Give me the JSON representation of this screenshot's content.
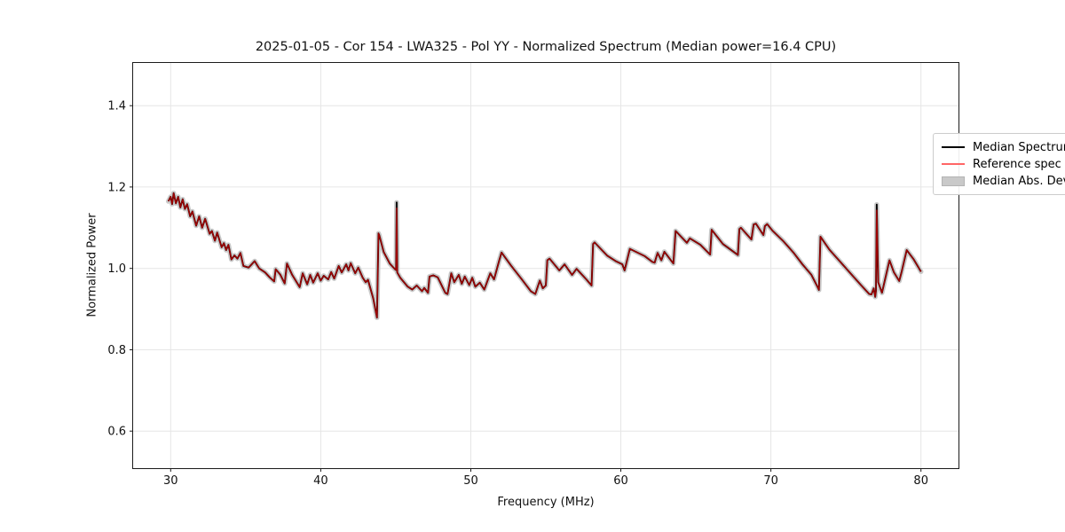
{
  "chart_data": {
    "type": "line",
    "title": "2025-01-05 - Cor 154 - LWA325 - Pol YY - Normalized Spectrum (Median power=16.4 CPU)",
    "xlabel": "Frequency (MHz)",
    "ylabel": "Normalized Power",
    "xlim": [
      27.5,
      82.5
    ],
    "ylim": [
      0.509,
      1.505
    ],
    "xticks": [
      30,
      40,
      50,
      60,
      70,
      80
    ],
    "xtick_labels": [
      "30",
      "40",
      "50",
      "60",
      "70",
      "80"
    ],
    "yticks": [
      0.6,
      0.8,
      1.0,
      1.2,
      1.4
    ],
    "ytick_labels": [
      "0.6",
      "0.8",
      "1.0",
      "1.2",
      "1.4"
    ],
    "grid": true,
    "legend_position": "upper right",
    "x": [
      29.85,
      30.0,
      30.1,
      30.2,
      30.35,
      30.5,
      30.65,
      30.8,
      30.95,
      31.1,
      31.3,
      31.45,
      31.7,
      31.9,
      32.1,
      32.3,
      32.6,
      32.75,
      32.95,
      33.1,
      33.4,
      33.55,
      33.7,
      33.85,
      34.05,
      34.25,
      34.45,
      34.65,
      34.85,
      35.2,
      35.6,
      35.9,
      36.3,
      36.6,
      36.9,
      37.0,
      37.3,
      37.6,
      37.75,
      38.1,
      38.6,
      38.8,
      39.1,
      39.3,
      39.5,
      39.8,
      40.0,
      40.2,
      40.5,
      40.7,
      40.9,
      41.2,
      41.4,
      41.7,
      41.85,
      42.0,
      42.3,
      42.5,
      42.8,
      43.0,
      43.15,
      43.5,
      43.75,
      43.85,
      43.9,
      44.2,
      44.6,
      44.95,
      45.02,
      45.06,
      45.1,
      45.3,
      45.8,
      46.1,
      46.4,
      46.75,
      46.9,
      47.15,
      47.25,
      47.5,
      47.8,
      48.3,
      48.45,
      48.7,
      48.9,
      49.2,
      49.4,
      49.6,
      49.9,
      50.1,
      50.3,
      50.6,
      50.9,
      51.3,
      51.55,
      51.9,
      52.05,
      52.7,
      53.4,
      54.0,
      54.3,
      54.6,
      54.8,
      55.0,
      55.1,
      55.25,
      55.9,
      56.25,
      56.75,
      57.05,
      57.7,
      58.05,
      58.15,
      58.25,
      59.1,
      59.7,
      60.1,
      60.25,
      60.6,
      61.6,
      62.1,
      62.25,
      62.45,
      62.7,
      62.9,
      63.5,
      63.65,
      64.4,
      64.6,
      65.3,
      65.95,
      66.05,
      66.8,
      67.8,
      67.9,
      68.0,
      68.7,
      68.85,
      69.0,
      69.5,
      69.6,
      69.75,
      70.1,
      70.8,
      71.5,
      72.1,
      72.7,
      73.1,
      73.2,
      73.3,
      73.9,
      74.6,
      75.3,
      76.0,
      76.55,
      76.7,
      76.85,
      76.95,
      77.0,
      77.05,
      77.15,
      77.4,
      77.9,
      78.2,
      78.55,
      78.7,
      79.05,
      79.5,
      80.0
    ],
    "series": [
      {
        "name": "Median Spectrum",
        "color": "#000000",
        "style": "solid",
        "values": [
          1.165,
          1.176,
          1.158,
          1.185,
          1.16,
          1.176,
          1.15,
          1.17,
          1.146,
          1.158,
          1.128,
          1.14,
          1.105,
          1.128,
          1.1,
          1.122,
          1.085,
          1.092,
          1.068,
          1.088,
          1.052,
          1.062,
          1.045,
          1.058,
          1.022,
          1.032,
          1.024,
          1.038,
          1.006,
          1.002,
          1.018,
          1.0,
          0.99,
          0.978,
          0.968,
          0.998,
          0.985,
          0.963,
          1.012,
          0.984,
          0.954,
          0.988,
          0.961,
          0.984,
          0.965,
          0.988,
          0.97,
          0.982,
          0.973,
          0.991,
          0.975,
          1.006,
          0.99,
          1.01,
          0.995,
          1.013,
          0.988,
          1.002,
          0.977,
          0.966,
          0.972,
          0.926,
          0.879,
          1.086,
          1.082,
          1.04,
          1.012,
          0.998,
          0.996,
          1.162,
          0.99,
          0.977,
          0.955,
          0.948,
          0.958,
          0.944,
          0.952,
          0.94,
          0.98,
          0.983,
          0.978,
          0.94,
          0.937,
          0.988,
          0.966,
          0.984,
          0.962,
          0.98,
          0.959,
          0.977,
          0.955,
          0.965,
          0.948,
          0.988,
          0.973,
          1.02,
          1.039,
          1.006,
          0.973,
          0.944,
          0.937,
          0.97,
          0.951,
          0.958,
          1.02,
          1.024,
          0.995,
          1.01,
          0.984,
          0.999,
          0.973,
          0.958,
          1.06,
          1.064,
          1.031,
          1.017,
          1.01,
          0.995,
          1.048,
          1.03,
          1.016,
          1.014,
          1.038,
          1.02,
          1.041,
          1.012,
          1.092,
          1.063,
          1.074,
          1.058,
          1.034,
          1.095,
          1.06,
          1.033,
          1.097,
          1.1,
          1.071,
          1.108,
          1.11,
          1.082,
          1.104,
          1.109,
          1.093,
          1.068,
          1.039,
          1.01,
          0.984,
          0.955,
          0.947,
          1.078,
          1.046,
          1.017,
          0.988,
          0.959,
          0.937,
          0.936,
          0.951,
          0.93,
          0.945,
          1.157,
          0.966,
          0.94,
          1.02,
          0.99,
          0.969,
          0.99,
          1.045,
          1.023,
          0.992
        ]
      },
      {
        "name": "Reference spec",
        "color": "#ff6666",
        "style": "solid",
        "values": [
          1.165,
          1.176,
          1.158,
          1.185,
          1.16,
          1.176,
          1.15,
          1.17,
          1.146,
          1.158,
          1.128,
          1.14,
          1.105,
          1.128,
          1.1,
          1.122,
          1.085,
          1.092,
          1.068,
          1.088,
          1.052,
          1.062,
          1.045,
          1.058,
          1.022,
          1.032,
          1.024,
          1.038,
          1.006,
          1.002,
          1.018,
          1.0,
          0.99,
          0.978,
          0.968,
          0.998,
          0.985,
          0.963,
          1.012,
          0.984,
          0.954,
          0.988,
          0.961,
          0.984,
          0.965,
          0.988,
          0.97,
          0.982,
          0.973,
          0.991,
          0.975,
          1.006,
          0.99,
          1.01,
          0.995,
          1.013,
          0.988,
          1.002,
          0.977,
          0.966,
          0.972,
          0.926,
          0.879,
          1.086,
          1.082,
          1.04,
          1.012,
          0.998,
          0.996,
          1.148,
          0.99,
          0.977,
          0.955,
          0.948,
          0.958,
          0.944,
          0.952,
          0.94,
          0.98,
          0.983,
          0.978,
          0.94,
          0.937,
          0.988,
          0.966,
          0.984,
          0.962,
          0.98,
          0.959,
          0.977,
          0.955,
          0.965,
          0.948,
          0.988,
          0.973,
          1.02,
          1.039,
          1.006,
          0.973,
          0.944,
          0.937,
          0.97,
          0.951,
          0.958,
          1.02,
          1.024,
          0.995,
          1.01,
          0.984,
          0.999,
          0.973,
          0.958,
          1.06,
          1.064,
          1.031,
          1.017,
          1.01,
          0.995,
          1.048,
          1.03,
          1.016,
          1.014,
          1.038,
          1.02,
          1.041,
          1.012,
          1.092,
          1.063,
          1.074,
          1.058,
          1.034,
          1.095,
          1.06,
          1.033,
          1.097,
          1.1,
          1.071,
          1.108,
          1.11,
          1.082,
          1.104,
          1.109,
          1.093,
          1.068,
          1.039,
          1.01,
          0.984,
          0.955,
          0.947,
          1.078,
          1.046,
          1.017,
          0.988,
          0.959,
          0.937,
          0.936,
          0.951,
          0.93,
          0.945,
          1.143,
          0.966,
          0.94,
          1.02,
          0.99,
          0.969,
          0.99,
          1.045,
          1.023,
          0.992
        ]
      },
      {
        "name": "Median Abs. Dev.",
        "type": "band",
        "color": "#c9c9c9",
        "around": "Median Spectrum",
        "halfwidth": 0.006
      }
    ]
  },
  "legend": {
    "entries": [
      {
        "label": "Median Spectrum",
        "type": "line",
        "color": "#000000"
      },
      {
        "label": "Reference spec",
        "type": "line",
        "color": "#ff6666"
      },
      {
        "label": "Median Abs. Dev.",
        "type": "patch",
        "color": "#c9c9c9"
      }
    ]
  }
}
